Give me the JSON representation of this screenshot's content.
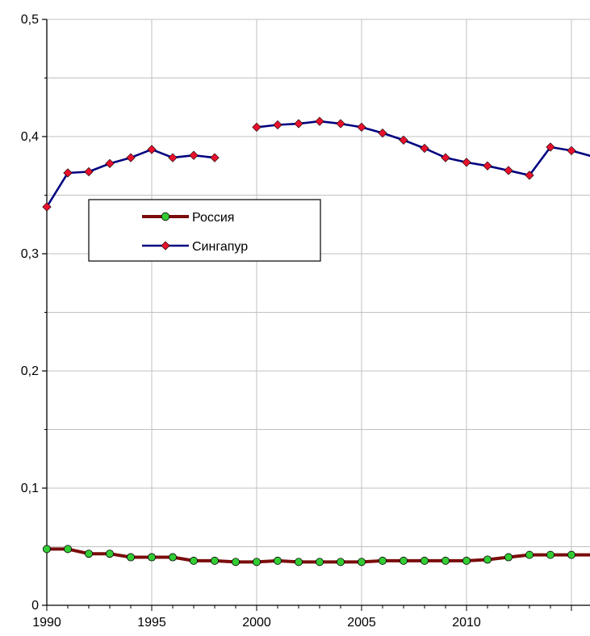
{
  "chart_data": {
    "type": "line",
    "title": "",
    "xlabel": "",
    "ylabel": "",
    "xlim": [
      1990,
      2016
    ],
    "ylim": [
      0,
      0.5
    ],
    "grid": true,
    "legend_position": "upper-left inside plot",
    "x_ticks": [
      1990,
      1995,
      2000,
      2005,
      2010
    ],
    "x_tick_labels": [
      "1990",
      "1995",
      "2000",
      "2005",
      "2010"
    ],
    "y_ticks": [
      0,
      0.1,
      0.2,
      0.3,
      0.4,
      0.5
    ],
    "y_tick_labels": [
      "0",
      "0,1",
      "0,2",
      "0,3",
      "0,4",
      "0,5"
    ],
    "series": [
      {
        "name": "Россия",
        "color": "#7a0c0c",
        "marker_color": "#33cc33",
        "marker": "circle",
        "x": [
          1990,
          1991,
          1992,
          1993,
          1994,
          1995,
          1996,
          1997,
          1998,
          1999,
          2000,
          2001,
          2002,
          2003,
          2004,
          2005,
          2006,
          2007,
          2008,
          2009,
          2010,
          2011,
          2012,
          2013,
          2014,
          2015,
          2016
        ],
        "y": [
          0.048,
          0.048,
          0.044,
          0.044,
          0.041,
          0.041,
          0.041,
          0.038,
          0.038,
          0.037,
          0.037,
          0.038,
          0.037,
          0.037,
          0.037,
          0.037,
          0.038,
          0.038,
          0.038,
          0.038,
          0.038,
          0.039,
          0.041,
          0.043,
          0.043,
          0.043,
          0.043
        ]
      },
      {
        "name": "Сингапур",
        "color": "#000080",
        "marker_color": "#e8112d",
        "marker": "diamond",
        "x": [
          1990,
          1991,
          1992,
          1993,
          1994,
          1995,
          1996,
          1997,
          1998,
          1999,
          2000,
          2001,
          2002,
          2003,
          2004,
          2005,
          2006,
          2007,
          2008,
          2009,
          2010,
          2011,
          2012,
          2013,
          2014,
          2015,
          2016
        ],
        "y": [
          0.34,
          0.369,
          0.37,
          0.377,
          0.382,
          0.389,
          0.382,
          0.384,
          0.382,
          null,
          0.408,
          0.41,
          0.411,
          0.413,
          0.411,
          0.408,
          0.403,
          0.397,
          0.39,
          0.382,
          0.378,
          0.375,
          0.371,
          0.367,
          0.391,
          0.388,
          0.383
        ]
      }
    ]
  }
}
